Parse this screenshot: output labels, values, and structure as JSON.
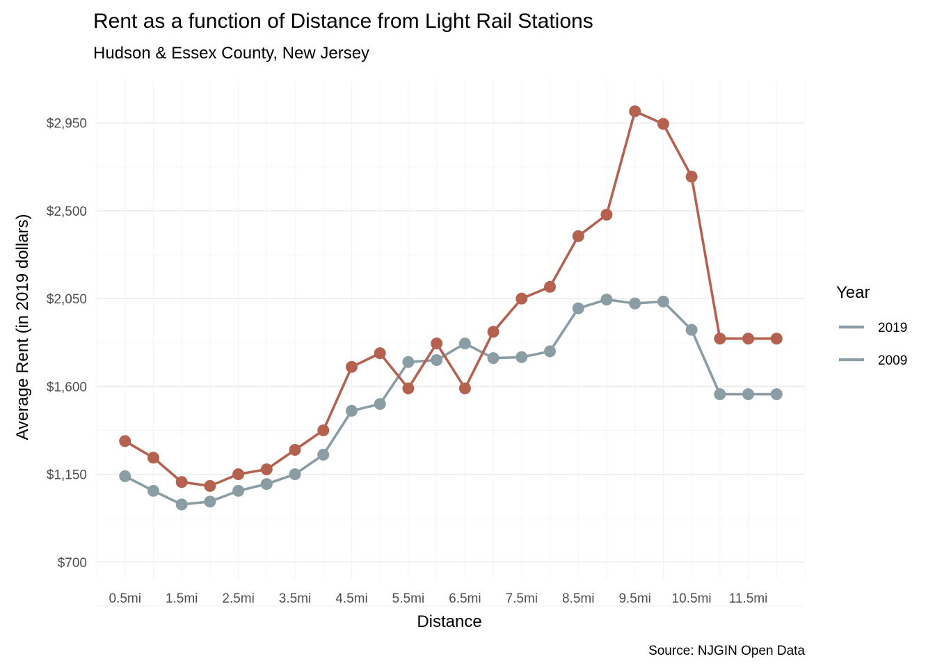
{
  "chart_data": {
    "type": "line",
    "title": "Rent as a function of Distance from Light Rail Stations",
    "subtitle": "Hudson & Essex County, New Jersey",
    "xlabel": "Distance",
    "ylabel": "Average Rent (in 2019 dollars)",
    "caption": "Source: NJGIN Open Data",
    "x_tick_labels": [
      "0.5mi",
      "1.5mi",
      "2.5mi",
      "3.5mi",
      "4.5mi",
      "5.5mi",
      "6.5mi",
      "7.5mi",
      "8.5mi",
      "9.5mi",
      "10.5mi",
      "11.5mi"
    ],
    "y_tick_labels": [
      "$700",
      "$1,150",
      "$1,600",
      "$2,050",
      "$2,500",
      "$2,950"
    ],
    "y_ticks": [
      700,
      1150,
      1600,
      2050,
      2500,
      2950
    ],
    "ylim": [
      610,
      3170
    ],
    "x": [
      0.5,
      1.0,
      1.5,
      2.0,
      2.5,
      3.0,
      3.5,
      4.0,
      4.5,
      5.0,
      5.5,
      6.0,
      6.5,
      7.0,
      7.5,
      8.0,
      8.5,
      9.0,
      9.5,
      10.0,
      10.5,
      11.0,
      11.5,
      12.0
    ],
    "xlim": [
      0.0,
      12.5
    ],
    "grid": true,
    "legend": {
      "title": "Year",
      "position": "right"
    },
    "series": [
      {
        "name": "2019",
        "color": "#B5614F",
        "values": [
          1320,
          1235,
          1110,
          1090,
          1150,
          1175,
          1275,
          1375,
          1700,
          1770,
          1590,
          1820,
          1590,
          1880,
          2050,
          2110,
          2370,
          2480,
          3010,
          2945,
          2675,
          1845,
          1845,
          1845
        ]
      },
      {
        "name": "2009",
        "color": "#8A9DA5",
        "values": [
          1140,
          1065,
          995,
          1010,
          1065,
          1100,
          1150,
          1250,
          1475,
          1510,
          1725,
          1735,
          1820,
          1745,
          1750,
          1780,
          2000,
          2045,
          2025,
          2035,
          1890,
          1560,
          1560,
          1560
        ]
      }
    ]
  }
}
